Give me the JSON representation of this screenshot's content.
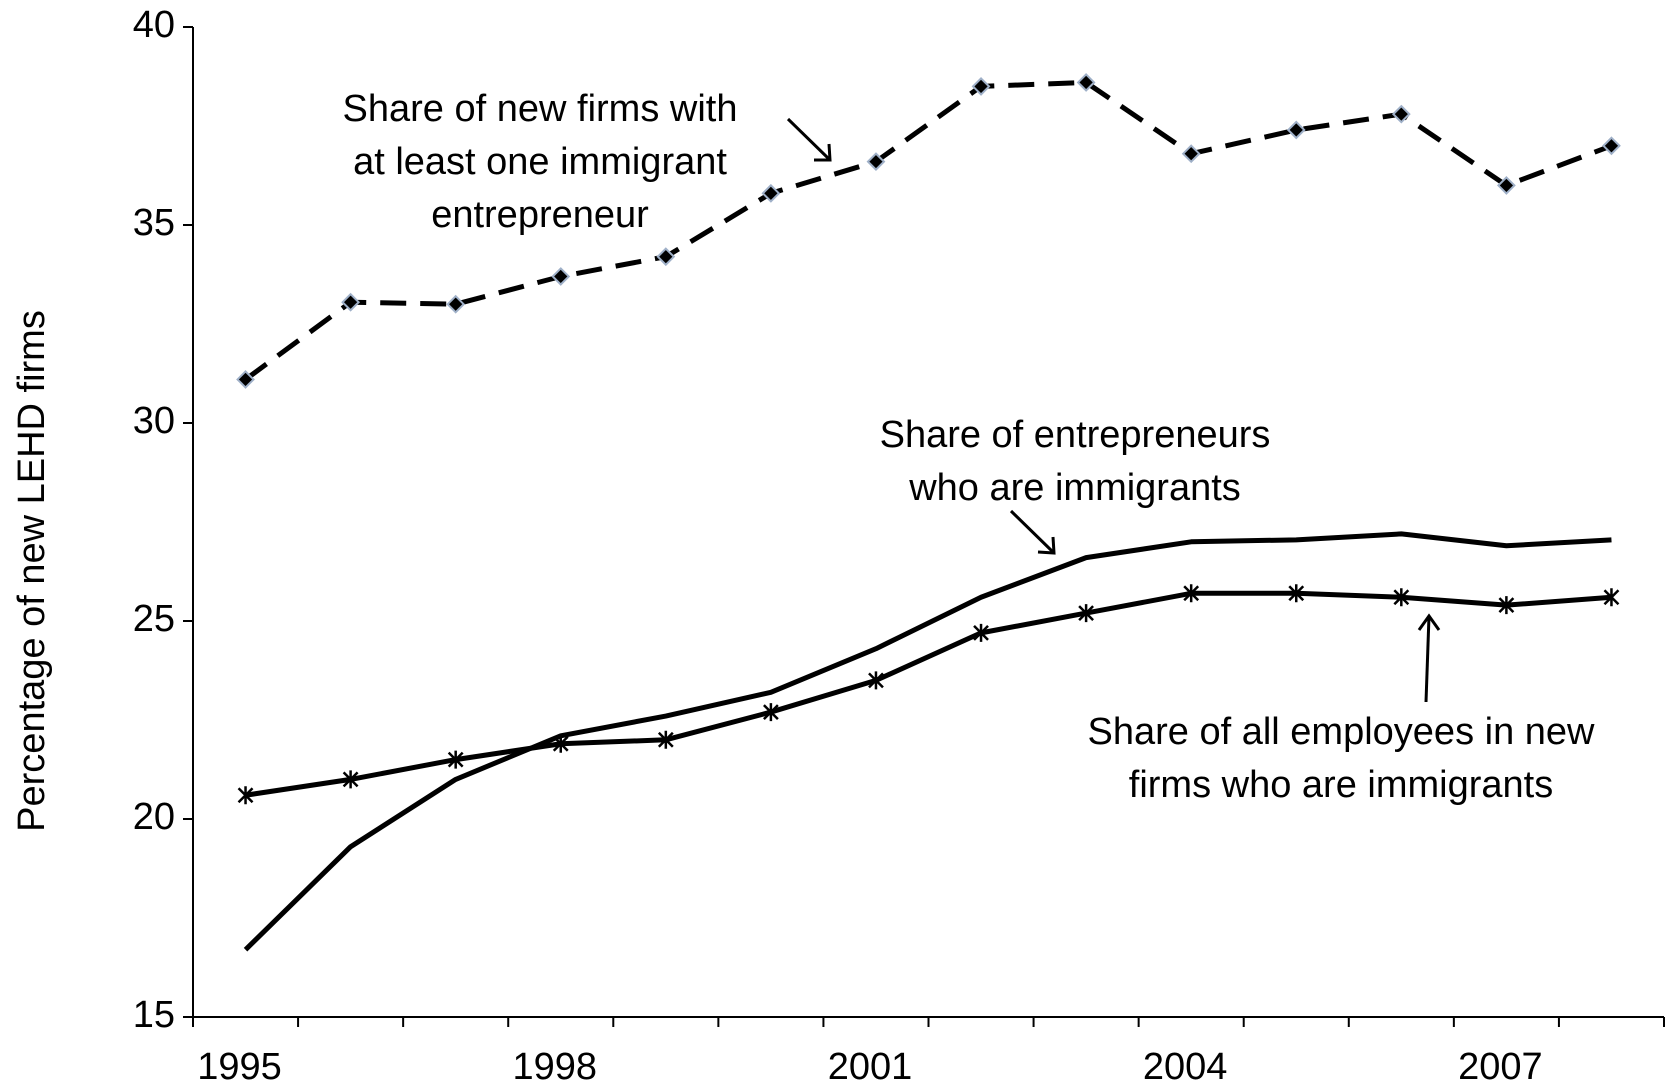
{
  "chart_data": {
    "type": "line",
    "y_label": "Percentage of new LEHD firms",
    "categories": [
      "1995",
      null,
      null,
      "1998",
      null,
      null,
      "2001",
      null,
      null,
      "2004",
      null,
      null,
      "2007",
      null
    ],
    "ylim": [
      15,
      40
    ],
    "yticks": [
      15,
      20,
      25,
      30,
      35,
      40
    ],
    "grid": false,
    "series": [
      {
        "label": [
          "Share of new firms with",
          "at least one immigrant",
          "entrepreneur"
        ],
        "color": "#000000",
        "dash": true,
        "marker": "diamond",
        "values": [
          31.1,
          33.05,
          33.0,
          33.7,
          34.2,
          35.8,
          36.6,
          38.5,
          38.6,
          36.8,
          37.4,
          37.8,
          36.0,
          37.0
        ]
      },
      {
        "label": [
          "Share of entrepreneurs",
          "who are immigrants"
        ],
        "color": "#000000",
        "dash": false,
        "marker": "none",
        "values": [
          16.7,
          19.3,
          21.0,
          22.1,
          22.6,
          23.2,
          24.3,
          25.6,
          26.6,
          27.0,
          27.05,
          27.2,
          26.9,
          27.05
        ]
      },
      {
        "label": [
          "Share of all employees in new",
          "firms who are immigrants"
        ],
        "color": "#000000",
        "dash": false,
        "marker": "asterisk",
        "values": [
          20.6,
          21.0,
          21.5,
          21.9,
          22.0,
          22.7,
          23.5,
          24.7,
          25.2,
          25.7,
          25.7,
          25.6,
          25.4,
          25.6
        ]
      }
    ]
  }
}
